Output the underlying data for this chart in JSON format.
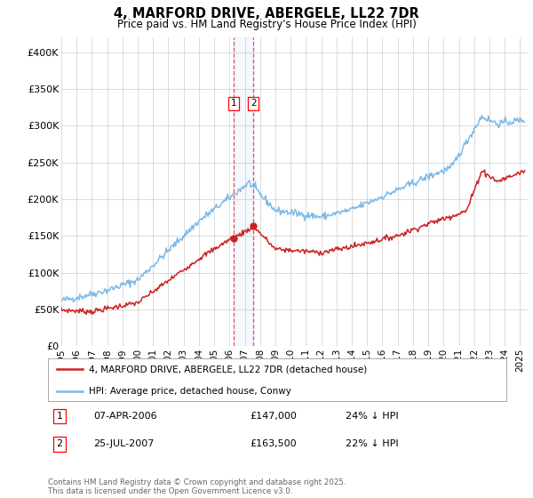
{
  "title": "4, MARFORD DRIVE, ABERGELE, LL22 7DR",
  "subtitle": "Price paid vs. HM Land Registry's House Price Index (HPI)",
  "legend_line1": "4, MARFORD DRIVE, ABERGELE, LL22 7DR (detached house)",
  "legend_line2": "HPI: Average price, detached house, Conwy",
  "footer": "Contains HM Land Registry data © Crown copyright and database right 2025.\nThis data is licensed under the Open Government Licence v3.0.",
  "sale1_label": "1",
  "sale1_date": "07-APR-2006",
  "sale1_price": "£147,000",
  "sale1_hpi": "24% ↓ HPI",
  "sale2_label": "2",
  "sale2_date": "25-JUL-2007",
  "sale2_price": "£163,500",
  "sale2_hpi": "22% ↓ HPI",
  "sale1_year": 2006.27,
  "sale2_year": 2007.56,
  "sale1_price_val": 147000,
  "sale2_price_val": 163500,
  "hpi_color": "#7cb9e8",
  "price_color": "#cc2222",
  "vline_color": "#dd4444",
  "grid_color": "#cccccc",
  "background_color": "#ffffff",
  "ylim": [
    0,
    420000
  ],
  "xlim_start": 1995,
  "xlim_end": 2025.5,
  "yticks": [
    0,
    50000,
    100000,
    150000,
    200000,
    250000,
    300000,
    350000,
    400000
  ],
  "ytick_labels": [
    "£0",
    "£50K",
    "£100K",
    "£150K",
    "£200K",
    "£250K",
    "£300K",
    "£350K",
    "£400K"
  ],
  "xticks": [
    1995,
    1996,
    1997,
    1998,
    1999,
    2000,
    2001,
    2002,
    2003,
    2004,
    2005,
    2006,
    2007,
    2008,
    2009,
    2010,
    2011,
    2012,
    2013,
    2014,
    2015,
    2016,
    2017,
    2018,
    2019,
    2020,
    2021,
    2022,
    2023,
    2024,
    2025
  ],
  "marker_y": 330000
}
